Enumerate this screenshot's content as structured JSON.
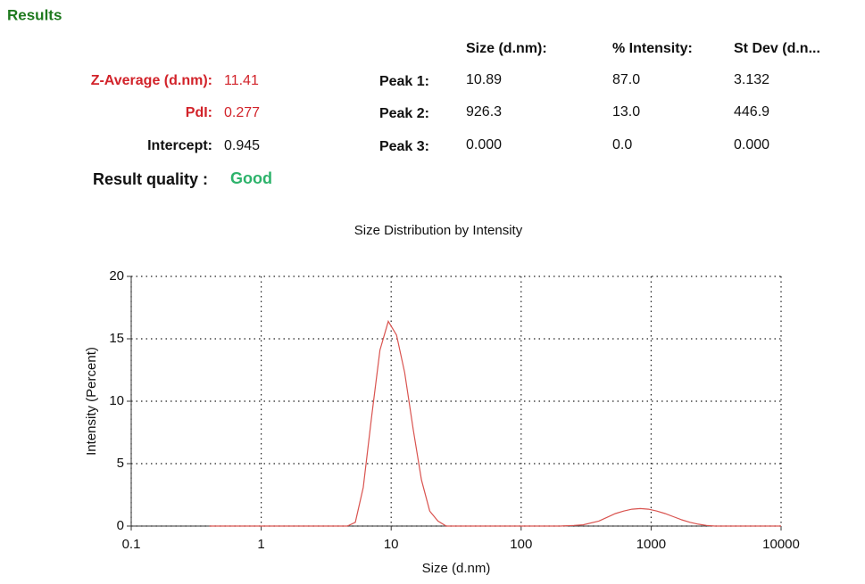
{
  "header": "Results",
  "summary": [
    {
      "label": "Z-Average (d.nm):",
      "value": "11.41"
    },
    {
      "label": "PdI:",
      "value": "0.277"
    },
    {
      "label": "Intercept:",
      "value": "0.945"
    }
  ],
  "quality": {
    "label": "Result quality :",
    "value": "Good"
  },
  "peaks": {
    "columns": [
      "Size (d.nm):",
      "% Intensity:",
      "St Dev (d.n..."
    ],
    "rows": [
      {
        "label": "Peak 1:",
        "values": [
          "10.89",
          "87.0",
          "3.132"
        ]
      },
      {
        "label": "Peak 2:",
        "values": [
          "926.3",
          "13.0",
          "446.9"
        ]
      },
      {
        "label": "Peak 3:",
        "values": [
          "0.000",
          "0.0",
          "0.000"
        ]
      }
    ]
  },
  "chart_data": {
    "type": "line",
    "title": "Size Distribution by Intensity",
    "x_label": "Size (d.nm)",
    "y_label": "Intensity (Percent)",
    "x_scale": "log",
    "xlim": [
      0.1,
      10000
    ],
    "xticks": [
      0.1,
      1,
      10,
      100,
      1000,
      10000
    ],
    "ylim": [
      0,
      20
    ],
    "yticks": [
      0,
      5,
      10,
      15,
      20
    ],
    "grid": true,
    "color": "#d9534f",
    "x": [
      0.4,
      0.6,
      1,
      1.5,
      2.3,
      3.5,
      4.6,
      5.3,
      6.1,
      7.1,
      8.2,
      9.5,
      11.0,
      12.7,
      14.8,
      17.1,
      19.8,
      22.9,
      26.5,
      50,
      100,
      200,
      255,
      300,
      396,
      459,
      531,
      615,
      712,
      825,
      955,
      1106,
      1281,
      1484,
      1718,
      1990,
      2305,
      2669,
      3091,
      5000,
      10000
    ],
    "values": [
      0,
      0,
      0,
      0,
      0,
      0,
      0,
      0.3,
      3.1,
      8.9,
      14.1,
      16.4,
      15.3,
      12.3,
      7.7,
      3.7,
      1.2,
      0.4,
      0,
      0,
      0,
      0,
      0.05,
      0.1,
      0.4,
      0.7,
      1.0,
      1.2,
      1.35,
      1.4,
      1.35,
      1.2,
      1.0,
      0.75,
      0.5,
      0.3,
      0.15,
      0.05,
      0,
      0,
      0
    ]
  }
}
